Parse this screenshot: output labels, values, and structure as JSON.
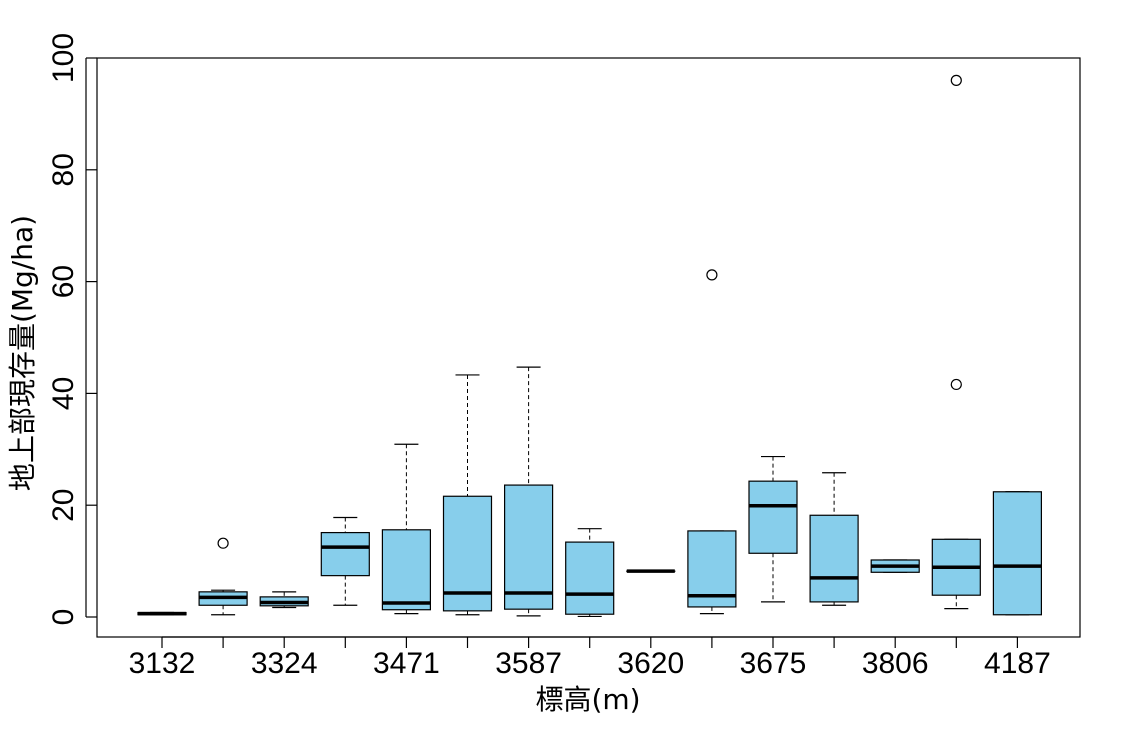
{
  "chart_data": {
    "type": "boxplot",
    "xlabel": "標高(m)",
    "ylabel": "地上部現存量(Mg/ha)",
    "ylim": [
      0,
      100
    ],
    "yticks": [
      0,
      20,
      40,
      60,
      80,
      100
    ],
    "x_tick_labels": [
      "3132",
      "3324",
      "3471",
      "3587",
      "3620",
      "3675",
      "3806",
      "4187"
    ],
    "box_fill": "#87CEEB",
    "grid": false,
    "legend": "none",
    "boxes": [
      {
        "q1": 0.4,
        "median": 0.6,
        "q3": 0.8,
        "whisker_low": 0.4,
        "whisker_high": 0.8,
        "outliers": []
      },
      {
        "q1": 2.1,
        "median": 3.5,
        "q3": 4.5,
        "whisker_low": 0.4,
        "whisker_high": 4.8,
        "outliers": [
          13.2
        ]
      },
      {
        "q1": 2.0,
        "median": 2.6,
        "q3": 3.6,
        "whisker_low": 1.7,
        "whisker_high": 4.5,
        "outliers": []
      },
      {
        "q1": 7.4,
        "median": 12.5,
        "q3": 15.1,
        "whisker_low": 2.1,
        "whisker_high": 17.8,
        "outliers": []
      },
      {
        "q1": 1.3,
        "median": 2.5,
        "q3": 15.6,
        "whisker_low": 0.6,
        "whisker_high": 30.9,
        "outliers": []
      },
      {
        "q1": 1.1,
        "median": 4.3,
        "q3": 21.6,
        "whisker_low": 0.4,
        "whisker_high": 43.3,
        "outliers": []
      },
      {
        "q1": 1.4,
        "median": 4.3,
        "q3": 23.6,
        "whisker_low": 0.2,
        "whisker_high": 44.7,
        "outliers": []
      },
      {
        "q1": 0.5,
        "median": 4.1,
        "q3": 13.4,
        "whisker_low": 0.1,
        "whisker_high": 15.8,
        "outliers": []
      },
      {
        "q1": 8.2,
        "median": 8.2,
        "q3": 8.2,
        "whisker_low": 8.2,
        "whisker_high": 8.2,
        "outliers": []
      },
      {
        "q1": 1.8,
        "median": 3.8,
        "q3": 15.4,
        "whisker_low": 0.6,
        "whisker_high": 15.4,
        "outliers": [
          61.2
        ]
      },
      {
        "q1": 11.4,
        "median": 19.9,
        "q3": 24.3,
        "whisker_low": 2.7,
        "whisker_high": 28.7,
        "outliers": []
      },
      {
        "q1": 2.7,
        "median": 7.0,
        "q3": 18.2,
        "whisker_low": 2.1,
        "whisker_high": 25.8,
        "outliers": []
      },
      {
        "q1": 8.0,
        "median": 9.1,
        "q3": 10.2,
        "whisker_low": 8.0,
        "whisker_high": 10.2,
        "outliers": []
      },
      {
        "q1": 3.9,
        "median": 8.9,
        "q3": 13.9,
        "whisker_low": 1.5,
        "whisker_high": 13.9,
        "outliers": [
          41.6,
          96.0
        ]
      },
      {
        "q1": 0.4,
        "median": 9.1,
        "q3": 22.4,
        "whisker_low": 0.4,
        "whisker_high": 22.4,
        "outliers": []
      }
    ]
  }
}
